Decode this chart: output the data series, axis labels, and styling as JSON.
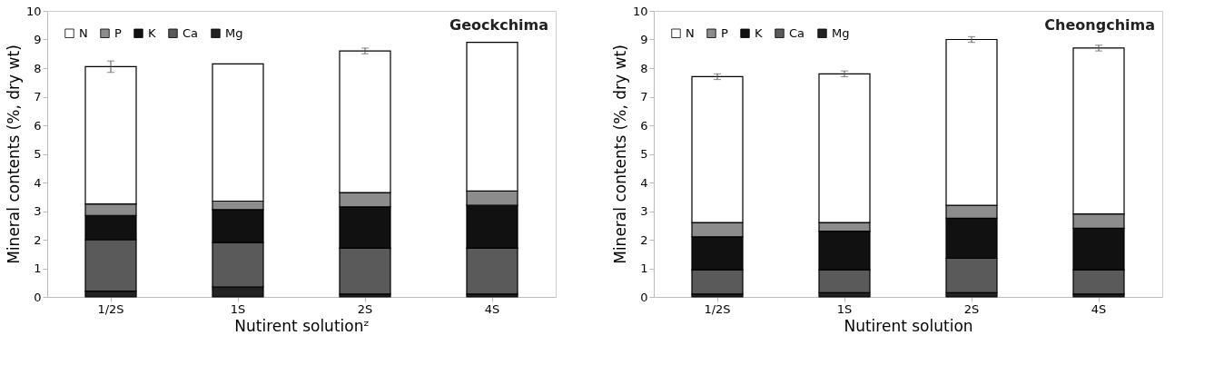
{
  "chart_data": [
    {
      "type": "bar",
      "title": "Geockchima",
      "xlabel": "Nutirent solutionᶻ",
      "ylabel": "Mineral contents (%, dry wt)",
      "categories": [
        "1/2S",
        "1S",
        "2S",
        "4S"
      ],
      "stacked": true,
      "legend": "top left",
      "ylim": [
        0,
        10
      ],
      "yticks": [
        0,
        1,
        2,
        3,
        4,
        5,
        6,
        7,
        8,
        9,
        10
      ],
      "series": [
        {
          "name": "Mg",
          "color": "#222222",
          "values": [
            0.2,
            0.35,
            0.1,
            0.1
          ]
        },
        {
          "name": "Ca",
          "color": "#5a5a5a",
          "values": [
            1.8,
            1.55,
            1.6,
            1.6
          ]
        },
        {
          "name": "K",
          "color": "#111111",
          "values": [
            0.85,
            1.15,
            1.45,
            1.5
          ]
        },
        {
          "name": "P",
          "color": "#8c8c8c",
          "values": [
            0.4,
            0.3,
            0.5,
            0.5
          ]
        },
        {
          "name": "N",
          "color": "#ffffff",
          "values": [
            4.8,
            4.8,
            4.95,
            5.2
          ],
          "errors": [
            0.2,
            null,
            0.1,
            null
          ]
        }
      ]
    },
    {
      "type": "bar",
      "title": "Cheongchima",
      "xlabel": "Nutirent solution",
      "ylabel": "Mineral contents (%, dry wt)",
      "categories": [
        "1/2S",
        "1S",
        "2S",
        "4S"
      ],
      "stacked": true,
      "legend": "top left",
      "ylim": [
        0,
        10
      ],
      "yticks": [
        0,
        1,
        2,
        3,
        4,
        5,
        6,
        7,
        8,
        9,
        10
      ],
      "series": [
        {
          "name": "Mg",
          "color": "#222222",
          "values": [
            0.1,
            0.15,
            0.15,
            0.1
          ]
        },
        {
          "name": "Ca",
          "color": "#5a5a5a",
          "values": [
            0.85,
            0.8,
            1.2,
            0.85
          ]
        },
        {
          "name": "K",
          "color": "#111111",
          "values": [
            1.15,
            1.35,
            1.4,
            1.45
          ]
        },
        {
          "name": "P",
          "color": "#8c8c8c",
          "values": [
            0.5,
            0.3,
            0.45,
            0.5
          ]
        },
        {
          "name": "N",
          "color": "#ffffff",
          "values": [
            5.1,
            5.2,
            5.8,
            5.8
          ],
          "errors": [
            0.1,
            0.1,
            0.1,
            0.1
          ]
        }
      ]
    }
  ]
}
